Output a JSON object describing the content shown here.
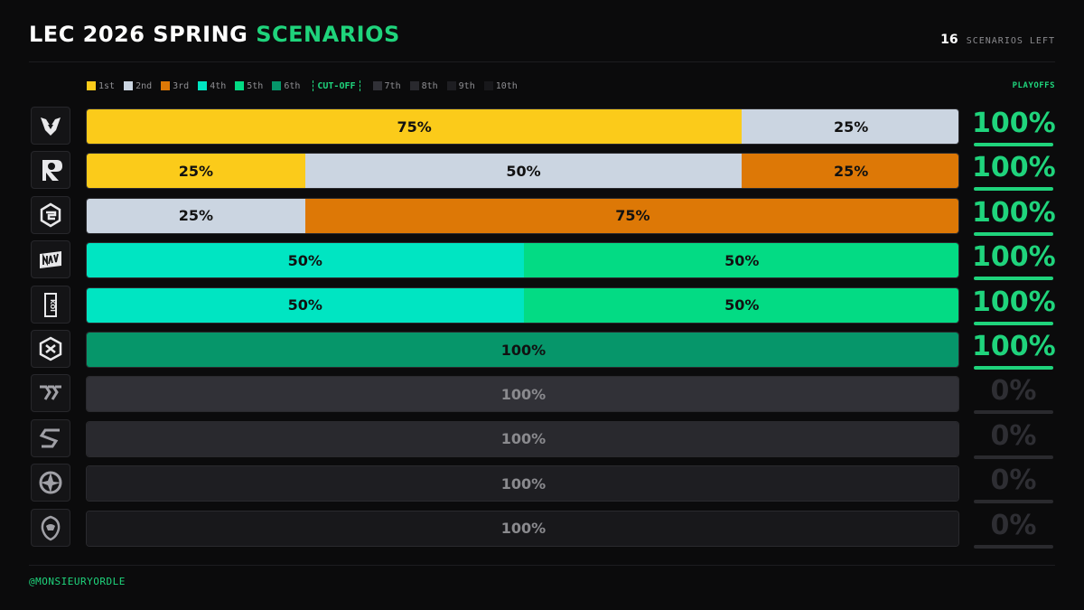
{
  "header": {
    "title_main": "LEC 2026 SPRING",
    "title_accent": "SCENARIOS",
    "scenarios_count": "16",
    "scenarios_label": "SCENARIOS LEFT",
    "playoffs_label": "PLAYOFFS"
  },
  "footer": {
    "handle": "@MONSIEURYORDLE"
  },
  "colors": {
    "accent": "#1fd47c",
    "1st": "#fbcb1a",
    "2nd": "#cbd5e1",
    "3rd": "#dd7806",
    "4th": "#00e5c2",
    "5th": "#03db84",
    "6th": "#06966a",
    "7th": "#313137",
    "8th": "#29292e",
    "9th": "#1e1e22",
    "10th": "#18181b"
  },
  "legend": {
    "items_before": [
      "1st",
      "2nd",
      "3rd",
      "4th",
      "5th",
      "6th"
    ],
    "cutoff_label": "CUT-OFF",
    "items_after": [
      "7th",
      "8th",
      "9th",
      "10th"
    ]
  },
  "chart_data": {
    "type": "bar",
    "orientation": "horizontal-stacked-100",
    "title": "LEC 2026 SPRING SCENARIOS",
    "categories": [
      "team-1",
      "team-2",
      "team-3",
      "team-4",
      "team-5",
      "team-6",
      "team-7",
      "team-8",
      "team-9",
      "team-10"
    ],
    "rows": [
      {
        "logo": "vitality-bee-icon",
        "segments": [
          {
            "place": "1st",
            "value": 75,
            "label": "75%"
          },
          {
            "place": "2nd",
            "value": 25,
            "label": "25%"
          }
        ],
        "playoffs": "100%",
        "qualified": true
      },
      {
        "logo": "karmine-corp-icon",
        "segments": [
          {
            "place": "1st",
            "value": 25,
            "label": "25%"
          },
          {
            "place": "2nd",
            "value": 50,
            "label": "50%"
          },
          {
            "place": "3rd",
            "value": 25,
            "label": "25%"
          }
        ],
        "playoffs": "100%",
        "qualified": true
      },
      {
        "logo": "g2-samurai-icon",
        "segments": [
          {
            "place": "2nd",
            "value": 25,
            "label": "25%"
          },
          {
            "place": "3rd",
            "value": 75,
            "label": "75%"
          }
        ],
        "playoffs": "100%",
        "qualified": true
      },
      {
        "logo": "navi-icon",
        "segments": [
          {
            "place": "4th",
            "value": 50,
            "label": "50%"
          },
          {
            "place": "5th",
            "value": 50,
            "label": "50%"
          }
        ],
        "playoffs": "100%",
        "qualified": true
      },
      {
        "logo": "movistar-koi-icon",
        "segments": [
          {
            "place": "4th",
            "value": 50,
            "label": "50%"
          },
          {
            "place": "5th",
            "value": 50,
            "label": "50%"
          }
        ],
        "playoffs": "100%",
        "qualified": true
      },
      {
        "logo": "giantx-icon",
        "segments": [
          {
            "place": "6th",
            "value": 100,
            "label": "100%"
          }
        ],
        "playoffs": "100%",
        "qualified": true
      },
      {
        "logo": "fnatic-icon",
        "segments": [
          {
            "place": "7th",
            "value": 100,
            "label": "100%"
          }
        ],
        "playoffs": "0%",
        "qualified": false
      },
      {
        "logo": "sk-gaming-icon",
        "segments": [
          {
            "place": "8th",
            "value": 100,
            "label": "100%"
          }
        ],
        "playoffs": "0%",
        "qualified": false
      },
      {
        "logo": "team-heretics-icon",
        "segments": [
          {
            "place": "9th",
            "value": 100,
            "label": "100%"
          }
        ],
        "playoffs": "0%",
        "qualified": false
      },
      {
        "logo": "shifters-icon",
        "segments": [
          {
            "place": "10th",
            "value": 100,
            "label": "100%"
          }
        ],
        "playoffs": "0%",
        "qualified": false
      }
    ]
  }
}
